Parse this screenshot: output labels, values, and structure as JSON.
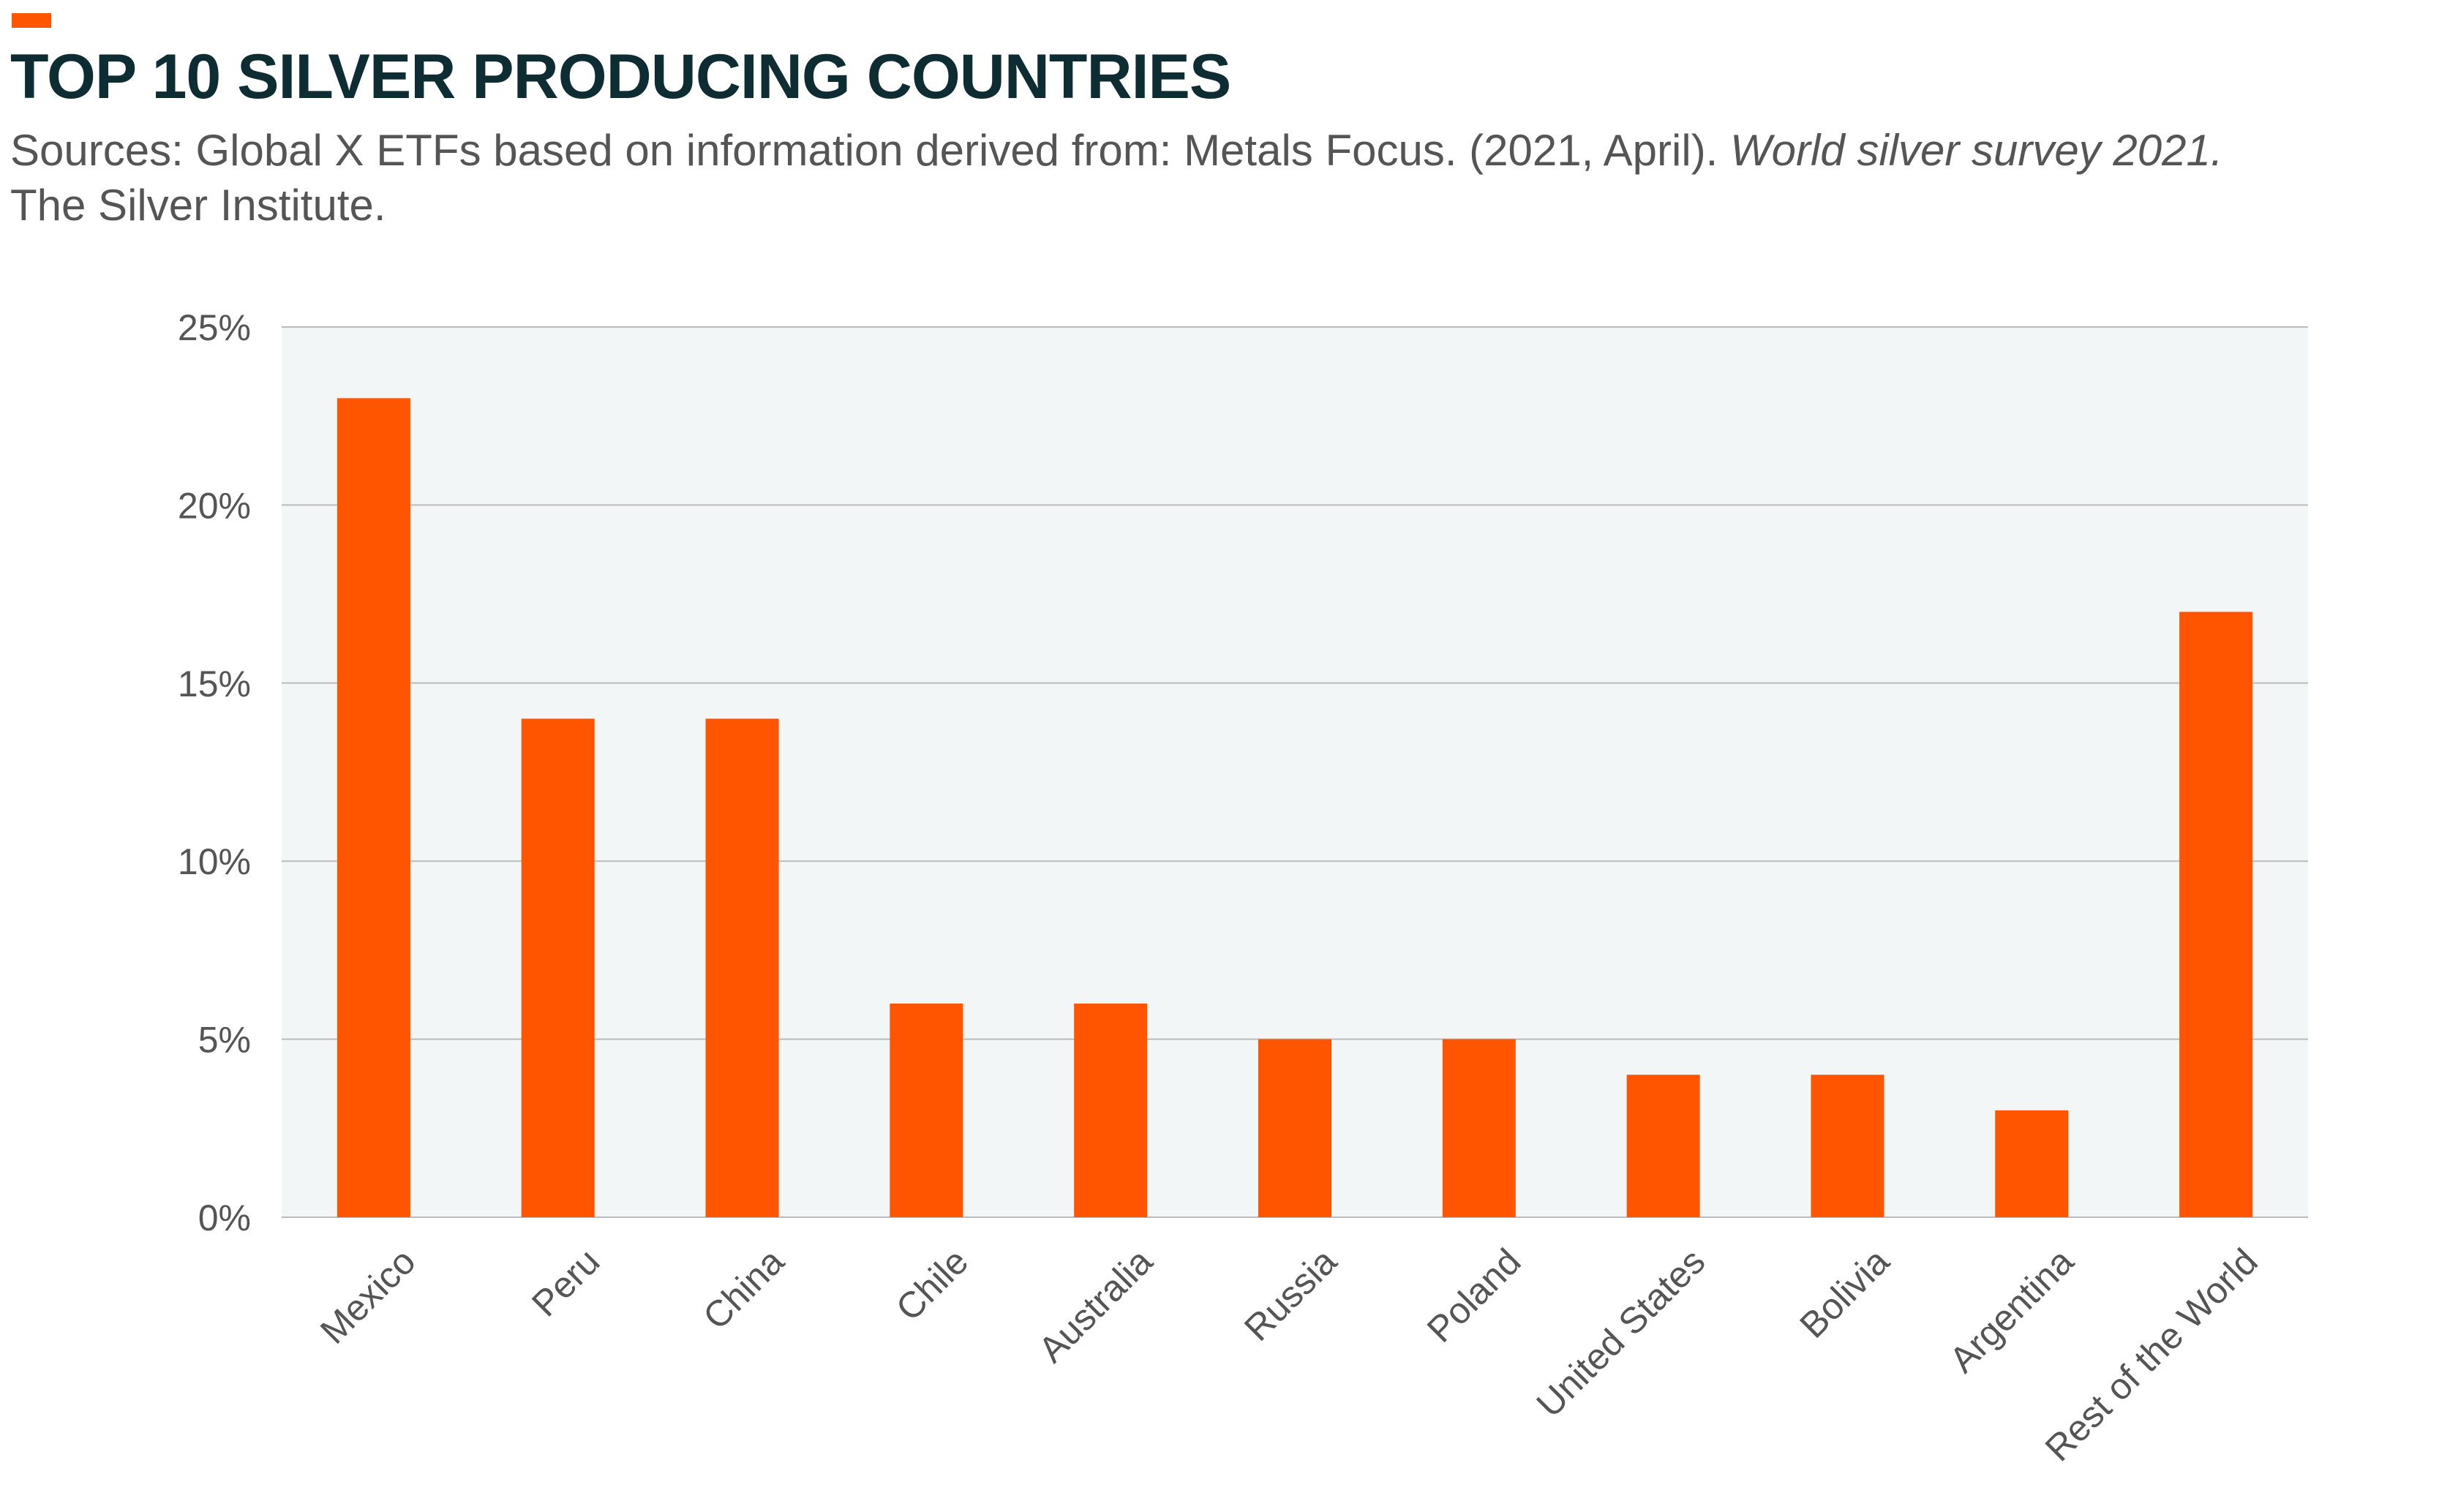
{
  "header": {
    "title": "TOP 10 SILVER PRODUCING COUNTRIES",
    "source_prefix": "Sources: Global X ETFs based on information derived from: Metals Focus. (2021, April). ",
    "source_italic": "World silver survey 2021.",
    "source_line2": "The Silver Institute."
  },
  "colors": {
    "accent": "#FF5500",
    "title": "#0D2D33",
    "bar": "#FF5500",
    "plot_background": "#F3F6F7",
    "grid": "#BBBBBB",
    "axis_text": "#555555"
  },
  "chart_data": {
    "type": "bar",
    "categories": [
      "Mexico",
      "Peru",
      "China",
      "Chile",
      "Australia",
      "Russia",
      "Poland",
      "United States",
      "Bolivia",
      "Argentina",
      "Rest of the World"
    ],
    "values": [
      23,
      14,
      14,
      6,
      6,
      5,
      5,
      4,
      4,
      3,
      17
    ],
    "ylim": [
      0,
      25
    ],
    "yticks": [
      0,
      5,
      10,
      15,
      20,
      25
    ],
    "ytick_labels": [
      "0%",
      "5%",
      "10%",
      "15%",
      "20%",
      "25%"
    ],
    "value_unit": "%",
    "grid": true,
    "xlabel": "",
    "ylabel": ""
  }
}
